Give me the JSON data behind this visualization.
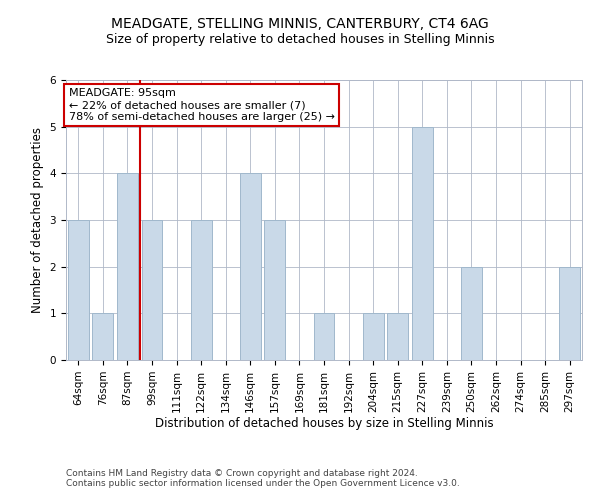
{
  "title": "MEADGATE, STELLING MINNIS, CANTERBURY, CT4 6AG",
  "subtitle": "Size of property relative to detached houses in Stelling Minnis",
  "xlabel": "Distribution of detached houses by size in Stelling Minnis",
  "ylabel": "Number of detached properties",
  "footer1": "Contains HM Land Registry data © Crown copyright and database right 2024.",
  "footer2": "Contains public sector information licensed under the Open Government Licence v3.0.",
  "categories": [
    "64sqm",
    "76sqm",
    "87sqm",
    "99sqm",
    "111sqm",
    "122sqm",
    "134sqm",
    "146sqm",
    "157sqm",
    "169sqm",
    "181sqm",
    "192sqm",
    "204sqm",
    "215sqm",
    "227sqm",
    "239sqm",
    "250sqm",
    "262sqm",
    "274sqm",
    "285sqm",
    "297sqm"
  ],
  "values": [
    3,
    1,
    4,
    3,
    0,
    3,
    0,
    4,
    3,
    0,
    1,
    0,
    1,
    1,
    5,
    0,
    2,
    0,
    0,
    0,
    2
  ],
  "bar_color": "#c9d9e8",
  "bar_edge_color": "#a0b8cc",
  "grid_color": "#b0b8c8",
  "annotation_text": "MEADGATE: 95sqm\n← 22% of detached houses are smaller (7)\n78% of semi-detached houses are larger (25) →",
  "annotation_box_color": "#ffffff",
  "annotation_box_edge": "#cc0000",
  "vline_x_index": 2.5,
  "vline_color": "#cc0000",
  "ylim": [
    0,
    6
  ],
  "title_fontsize": 10,
  "subtitle_fontsize": 9,
  "axis_label_fontsize": 8.5,
  "tick_fontsize": 7.5,
  "footer_fontsize": 6.5,
  "annotation_fontsize": 8,
  "background_color": "#ffffff"
}
